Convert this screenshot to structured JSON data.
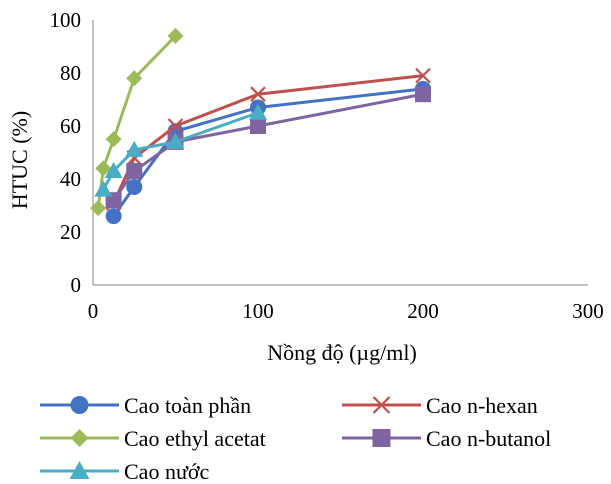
{
  "chart_data": {
    "type": "line",
    "title": "",
    "xlabel": "Nồng độ (µg/ml)",
    "ylabel": "HTUC (%)",
    "xlim": [
      0,
      300
    ],
    "ylim": [
      0,
      100
    ],
    "xticks": [
      0,
      100,
      200,
      300
    ],
    "yticks": [
      0,
      20,
      40,
      60,
      80,
      100
    ],
    "grid": false,
    "legend_position": "bottom",
    "series": [
      {
        "name": "Cao toàn phần",
        "color": "#4472C4",
        "marker": "circle",
        "x": [
          12.5,
          25,
          50,
          100,
          200
        ],
        "y": [
          26,
          37,
          58,
          67,
          74
        ]
      },
      {
        "name": "Cao n-hexan",
        "color": "#C0504D",
        "marker": "x",
        "x": [
          12.5,
          25,
          50,
          100,
          200
        ],
        "y": [
          31,
          48,
          60,
          72,
          79
        ]
      },
      {
        "name": "Cao ethyl acetat",
        "color": "#9BBB59",
        "marker": "diamond",
        "x": [
          3.125,
          6.25,
          12.5,
          25,
          50
        ],
        "y": [
          29,
          44,
          55,
          78,
          94
        ]
      },
      {
        "name": "Cao n-butanol",
        "color": "#8064A2",
        "marker": "square",
        "x": [
          12.5,
          25,
          50,
          100,
          200
        ],
        "y": [
          32,
          43,
          54,
          60,
          72
        ]
      },
      {
        "name": "Cao nước",
        "color": "#4BACC6",
        "marker": "triangle",
        "x": [
          6.25,
          12.5,
          25,
          50,
          100
        ],
        "y": [
          36,
          43,
          51,
          54,
          65
        ]
      }
    ]
  }
}
